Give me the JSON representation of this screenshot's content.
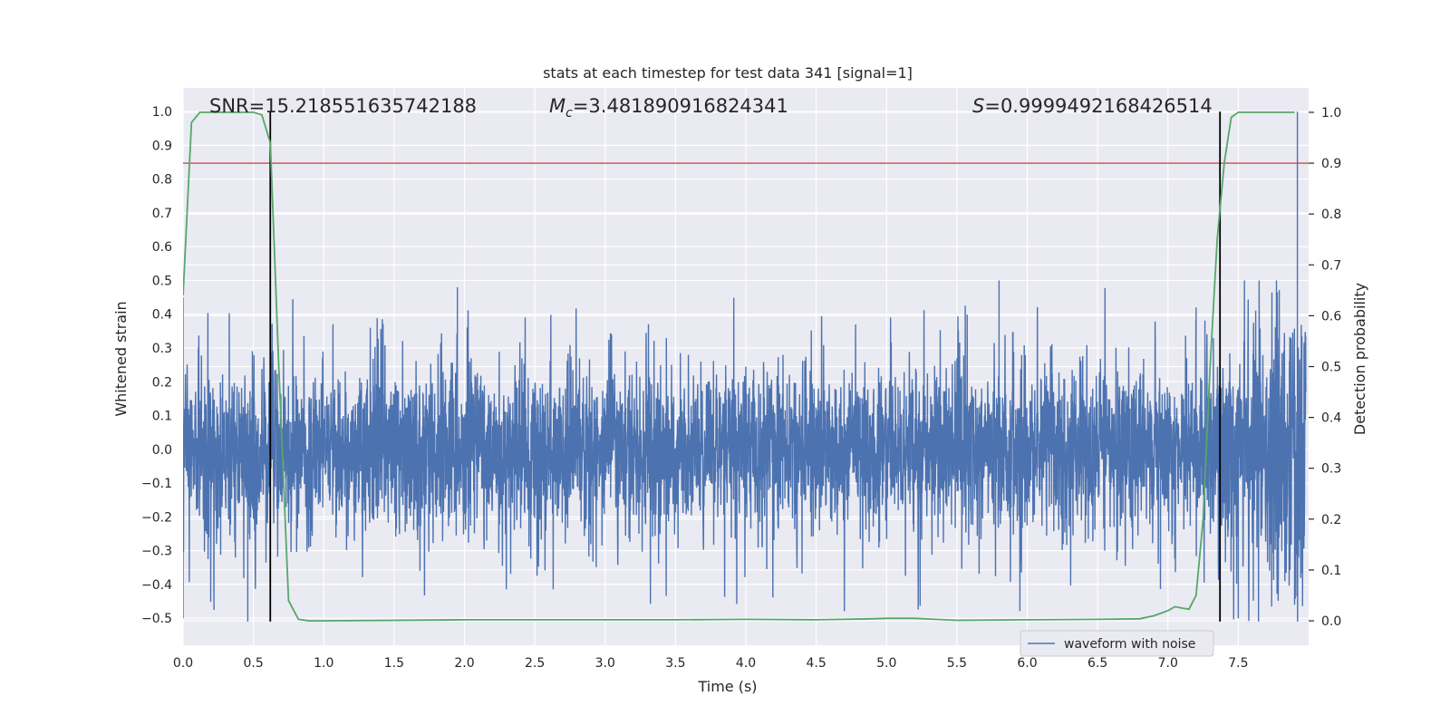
{
  "chart_data": {
    "type": "line",
    "title": "stats at each timestep for test data 341 [signal=1]",
    "xlabel": "Time (s)",
    "ylabel": "Whitened strain",
    "y2label": "Detection probability",
    "xlim": [
      0.0,
      8.0
    ],
    "ylim": [
      -0.58,
      1.07
    ],
    "y2lim": [
      -0.048,
      1.048
    ],
    "x_ticks": [
      "0.0",
      "0.5",
      "1.0",
      "1.5",
      "2.0",
      "2.5",
      "3.0",
      "3.5",
      "4.0",
      "4.5",
      "5.0",
      "5.5",
      "6.0",
      "6.5",
      "7.0",
      "7.5"
    ],
    "y_ticks": [
      "−0.5",
      "−0.4",
      "−0.3",
      "−0.2",
      "−0.1",
      "0.0",
      "0.1",
      "0.2",
      "0.3",
      "0.4",
      "0.5",
      "0.6",
      "0.7",
      "0.8",
      "0.9",
      "1.0"
    ],
    "y2_ticks": [
      "0.0",
      "0.1",
      "0.2",
      "0.3",
      "0.4",
      "0.5",
      "0.6",
      "0.7",
      "0.8",
      "0.9",
      "1.0"
    ],
    "grid": true,
    "legend_position": "bottom-right",
    "annotations": {
      "snr": "SNR=15.218551635742188",
      "mc_symbol": "M",
      "mc_sub": "c",
      "mc_value": "=3.481890916824341",
      "s_symbol": "S",
      "s_value": "=0.9999492168426514"
    },
    "series": [
      {
        "name": "waveform with noise",
        "axis": "left",
        "color": "#4c72b0",
        "kind": "noisy-waveform",
        "x_range": [
          0.0,
          7.98
        ],
        "typical_amplitude": 0.22,
        "peak_envelope": [
          [
            0.0,
            0.45
          ],
          [
            1.95,
            0.48
          ],
          [
            5.8,
            0.5
          ],
          [
            7.2,
            0.42
          ],
          [
            7.92,
            1.0
          ]
        ],
        "trough_envelope": [
          [
            0.0,
            -0.5
          ],
          [
            0.46,
            -0.51
          ],
          [
            7.5,
            -0.5
          ],
          [
            7.9,
            -0.46
          ]
        ]
      },
      {
        "name": "detection probability",
        "axis": "right",
        "color": "#55a868",
        "x": [
          0.0,
          0.06,
          0.12,
          0.2,
          0.3,
          0.4,
          0.5,
          0.56,
          0.62,
          0.68,
          0.75,
          0.82,
          0.9,
          1.5,
          2.0,
          2.5,
          3.0,
          3.5,
          4.0,
          4.5,
          4.9,
          5.0,
          5.2,
          5.5,
          6.0,
          6.5,
          6.8,
          6.9,
          7.0,
          7.05,
          7.1,
          7.15,
          7.2,
          7.25,
          7.3,
          7.35,
          7.4,
          7.45,
          7.5,
          7.6,
          7.7,
          7.8,
          7.9
        ],
        "values": [
          0.64,
          0.98,
          1.0,
          1.0,
          1.0,
          1.0,
          1.0,
          0.995,
          0.94,
          0.5,
          0.04,
          0.003,
          0.0,
          0.001,
          0.002,
          0.002,
          0.002,
          0.002,
          0.003,
          0.002,
          0.004,
          0.005,
          0.005,
          0.001,
          0.002,
          0.003,
          0.004,
          0.01,
          0.02,
          0.028,
          0.025,
          0.023,
          0.05,
          0.2,
          0.5,
          0.75,
          0.9,
          0.99,
          1.0,
          1.0,
          1.0,
          1.0,
          1.0
        ]
      }
    ],
    "threshold_line": {
      "y2": 0.9,
      "color": "#c44e52"
    },
    "vertical_lines": [
      {
        "x": 0.62,
        "y_from": -0.51,
        "y_to": 1.0,
        "color": "#000000"
      },
      {
        "x": 7.37,
        "y_from": -0.51,
        "y_to": 1.0,
        "color": "#000000"
      }
    ],
    "colors": {
      "axes_bg": "#eaeaf2",
      "grid": "#ffffff",
      "text": "#262626"
    }
  }
}
